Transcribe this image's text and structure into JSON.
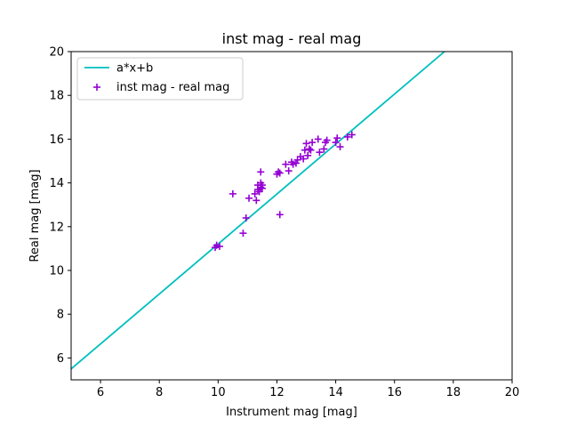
{
  "chart_data": {
    "type": "scatter",
    "title": "inst mag - real mag",
    "xlabel": "Instrument mag [mag]",
    "ylabel": "Real mag [mag]",
    "xlim": [
      5,
      20
    ],
    "ylim": [
      5,
      20
    ],
    "xticks": [
      6,
      8,
      10,
      12,
      14,
      16,
      18,
      20
    ],
    "yticks": [
      6,
      8,
      10,
      12,
      14,
      16,
      18,
      20
    ],
    "grid": false,
    "legend_position": "top-left",
    "series": [
      {
        "name": "a*x+b",
        "kind": "line",
        "color": "#00bfbf",
        "x": [
          5,
          17.7
        ],
        "y": [
          5.5,
          20.0
        ]
      },
      {
        "name": "inst mag - real mag",
        "kind": "scatter",
        "marker": "plus",
        "color": "#9400d3",
        "x": [
          9.9,
          9.95,
          10.05,
          10.5,
          10.85,
          10.95,
          11.05,
          11.25,
          11.3,
          11.35,
          11.35,
          11.4,
          11.45,
          11.45,
          11.45,
          11.5,
          11.5,
          12.0,
          12.05,
          12.1,
          12.1,
          12.3,
          12.4,
          12.5,
          12.55,
          12.65,
          12.7,
          12.8,
          12.9,
          12.95,
          13.0,
          13.05,
          13.1,
          13.15,
          13.2,
          13.4,
          13.45,
          13.6,
          13.65,
          13.7,
          14.0,
          14.05,
          14.15,
          14.4,
          14.55
        ],
        "y": [
          11.05,
          11.15,
          11.1,
          13.5,
          11.7,
          12.4,
          13.3,
          13.5,
          13.2,
          13.7,
          13.9,
          13.6,
          14.0,
          13.8,
          14.5,
          13.9,
          13.75,
          14.4,
          14.5,
          12.55,
          14.45,
          14.85,
          14.55,
          14.95,
          14.85,
          14.9,
          15.05,
          15.2,
          15.1,
          15.5,
          15.8,
          15.25,
          15.55,
          15.5,
          15.85,
          16.0,
          15.4,
          15.55,
          15.85,
          15.95,
          15.85,
          16.05,
          15.65,
          16.1,
          16.2
        ]
      }
    ]
  }
}
